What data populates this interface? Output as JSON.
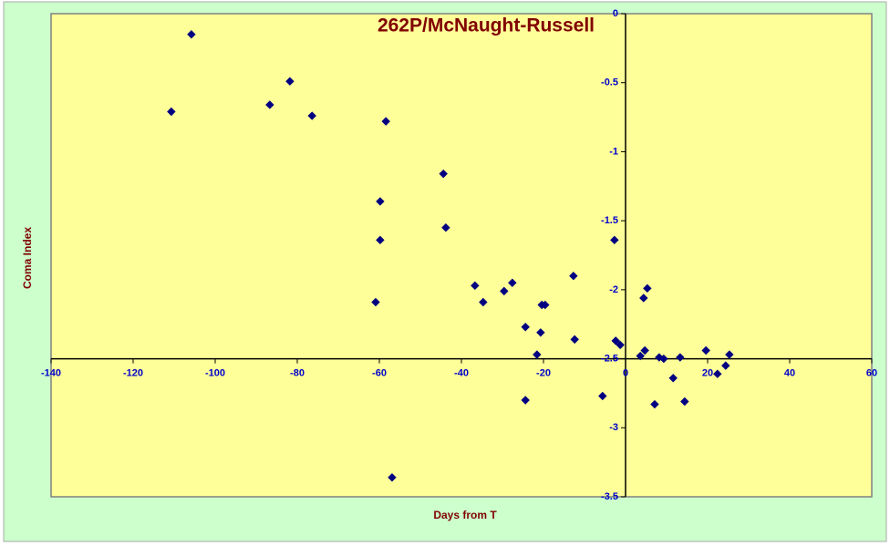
{
  "chart_data": {
    "type": "scatter",
    "title": "262P/McNaught-Russell",
    "x_label": "Days from T",
    "y_label": "Coma Index",
    "xlim": [
      -140,
      60
    ],
    "xticks": [
      -140,
      -120,
      -100,
      -80,
      -60,
      -40,
      -20,
      0,
      20,
      40,
      60
    ],
    "ylim": [
      -3.5,
      0
    ],
    "yticks": [
      0,
      -0.5,
      -1,
      -1.5,
      -2,
      -2.5,
      -3,
      -3.5
    ],
    "x_axis_crosses_y": -2.5,
    "y_axis_crosses_x": 0,
    "series": [
      {
        "color": "#000080",
        "x": [
          -105.8,
          -110.7,
          -86.7,
          -81.8,
          -76.4,
          -58.4,
          -44.4,
          -59.8,
          -43.8,
          -59.8,
          -60.9,
          -36.7,
          -34.7,
          -29.6,
          -27.6,
          -12.7,
          -20.4,
          -19.6,
          -24.4,
          -20.7,
          -12.4,
          -21.6,
          -2.7,
          -2.4,
          -1.3,
          -24.4,
          -5.6,
          -56.9,
          5.3,
          4.4,
          4.7,
          3.6,
          8.2,
          9.3,
          13.3,
          19.6,
          25.3,
          24.4,
          22.4,
          11.6,
          7.1,
          14.4
        ],
        "values": [
          -0.15,
          -0.71,
          -0.66,
          -0.49,
          -0.74,
          -0.78,
          -1.16,
          -1.36,
          -1.55,
          -1.64,
          -2.09,
          -1.97,
          -2.09,
          -2.01,
          -1.95,
          -1.9,
          -2.11,
          -2.11,
          -2.27,
          -2.31,
          -2.36,
          -2.47,
          -1.64,
          -2.37,
          -2.4,
          -2.8,
          -2.77,
          -3.36,
          -1.99,
          -2.06,
          -2.44,
          -2.48,
          -2.49,
          -2.5,
          -2.49,
          -2.44,
          -2.47,
          -2.55,
          -2.61,
          -2.64,
          -2.83,
          -2.81
        ]
      }
    ]
  }
}
